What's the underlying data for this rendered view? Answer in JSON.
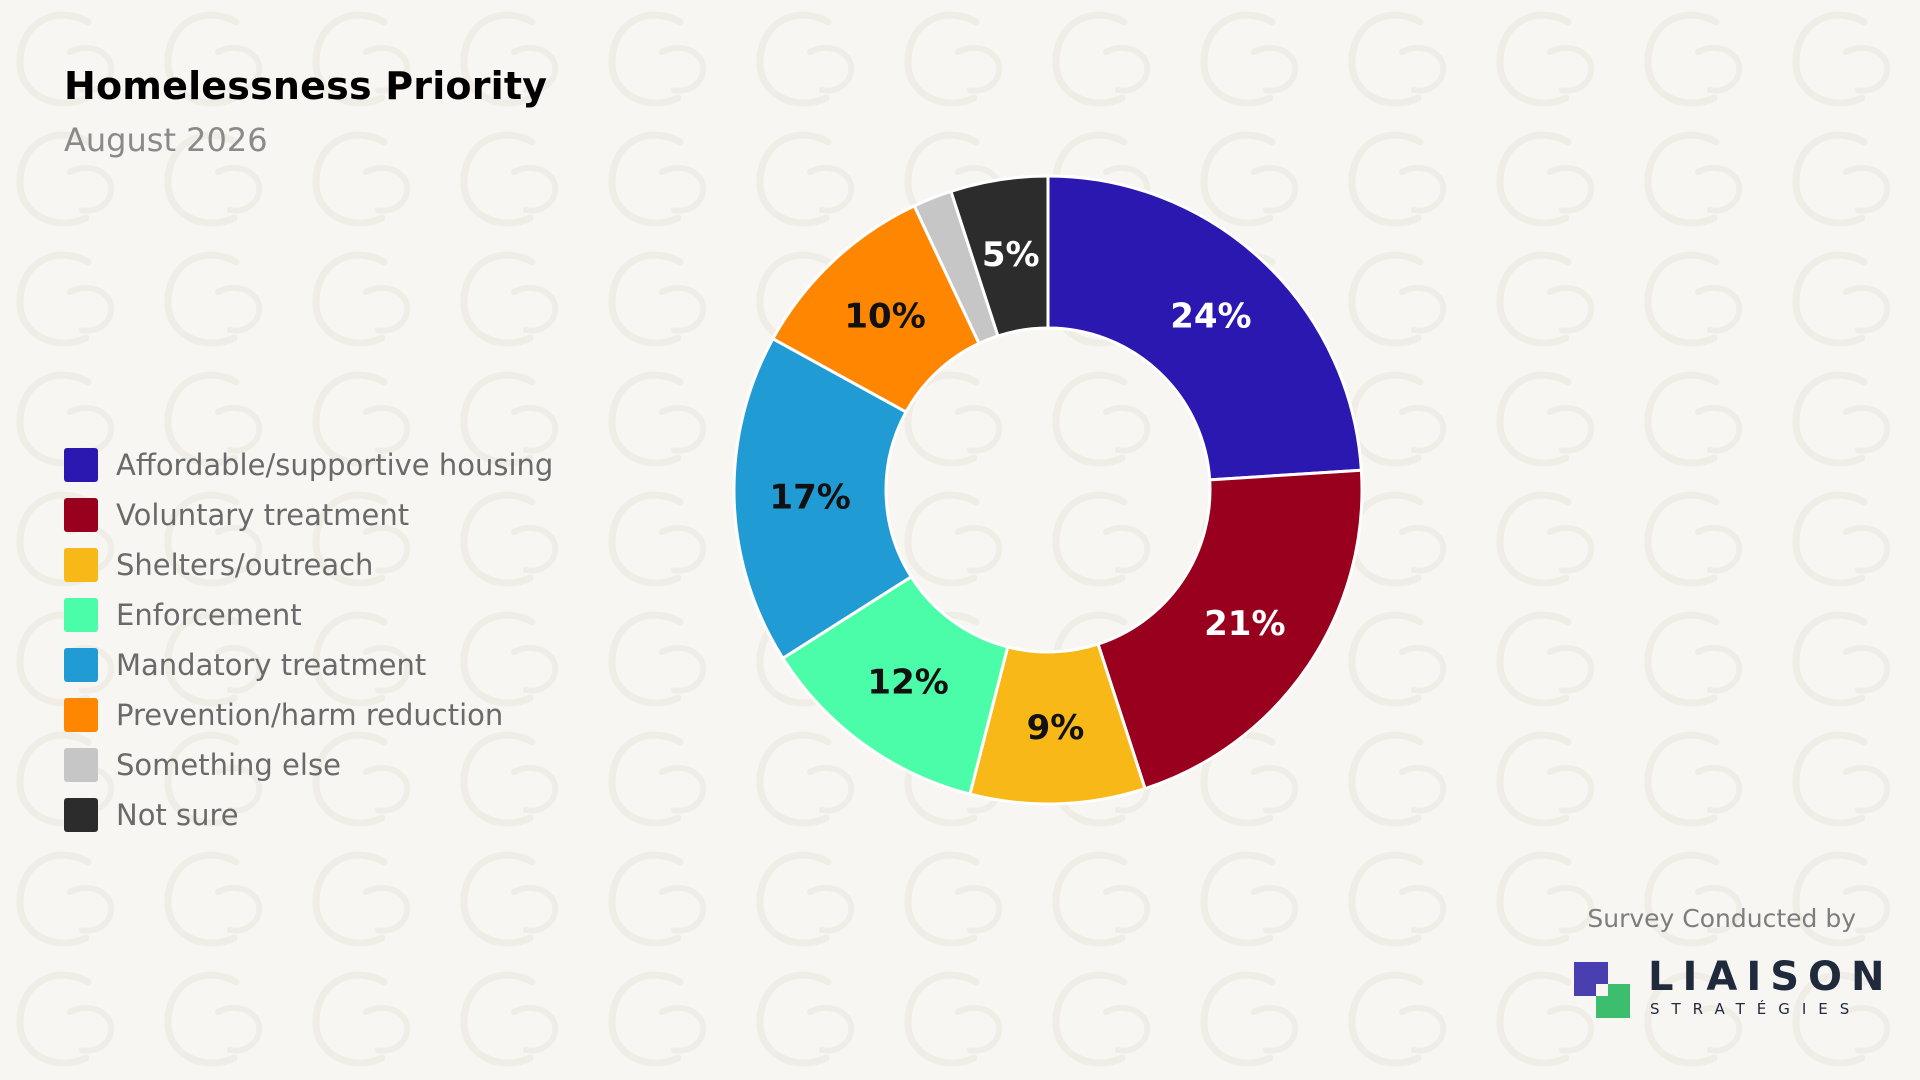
{
  "header": {
    "title": "Homelessness Priority",
    "subtitle": "August 2026"
  },
  "legend": {
    "items": [
      {
        "label": "Affordable/supportive housing",
        "color": "#2a18b0"
      },
      {
        "label": "Voluntary treatment",
        "color": "#98001e"
      },
      {
        "label": "Shelters/outreach",
        "color": "#f8b918"
      },
      {
        "label": "Enforcement",
        "color": "#4bfca8"
      },
      {
        "label": "Mandatory treatment",
        "color": "#219bd3"
      },
      {
        "label": "Prevention/harm reduction",
        "color": "#ff8600"
      },
      {
        "label": "Something else",
        "color": "#c6c6c6"
      },
      {
        "label": "Not sure",
        "color": "#2c2c2c"
      }
    ]
  },
  "chart_data": {
    "type": "pie",
    "variant": "donut",
    "title": "Homelessness Priority",
    "subtitle": "August 2026",
    "categories": [
      "Affordable/supportive housing",
      "Voluntary treatment",
      "Shelters/outreach",
      "Enforcement",
      "Mandatory treatment",
      "Prevention/harm reduction",
      "Something else",
      "Not sure"
    ],
    "values": [
      24,
      21,
      9,
      12,
      17,
      10,
      2,
      5
    ],
    "data_labels": [
      "24%",
      "21%",
      "9%",
      "12%",
      "17%",
      "10%",
      "",
      "5%"
    ],
    "colors": [
      "#2a18b0",
      "#98001e",
      "#f8b918",
      "#4bfca8",
      "#219bd3",
      "#ff8600",
      "#c6c6c6",
      "#2c2c2c"
    ],
    "label_colors": [
      "#ffffff",
      "#ffffff",
      "#111111",
      "#111111",
      "#111111",
      "#111111",
      "#111111",
      "#ffffff"
    ],
    "start": "top",
    "direction": "clockwise",
    "legend_position": "left"
  },
  "footer": {
    "credit": "Survey Conducted by",
    "brand_name": "LIAISON",
    "brand_tagline": "STRATÉGIES",
    "brand_colors": {
      "dark": "#4a3fb0",
      "green": "#3dbd6e",
      "light": "#9088d6"
    }
  }
}
